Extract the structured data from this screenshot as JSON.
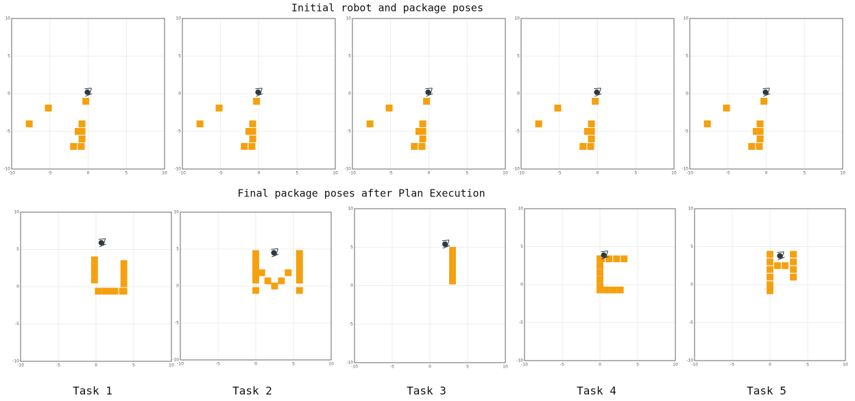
{
  "headings": {
    "top": "Initial robot and package poses",
    "bottom": "Final package poses after Plan Execution"
  },
  "chart_data": [
    {
      "type": "scatter",
      "xlim": [
        -10,
        10
      ],
      "ylim": [
        -10,
        10
      ],
      "xticks": [
        -10,
        -5,
        0,
        5,
        10
      ],
      "yticks": [
        -10,
        -5,
        0,
        5,
        10
      ],
      "grid": true,
      "packages": {
        "color": "#f5a00f",
        "x": [
          -7.7,
          -5.2,
          -0.3,
          -0.8,
          -1.3,
          -0.8,
          -0.8,
          -1.9,
          -0.9
        ],
        "y": [
          -4,
          -1.9,
          -1,
          -4,
          -5,
          -5,
          -6,
          -7,
          -7
        ]
      },
      "robot": {
        "color": "#2f3a40",
        "x": -0.1,
        "y": 0.2
      }
    },
    {
      "type": "scatter",
      "xlim": [
        -10,
        10
      ],
      "ylim": [
        -10,
        10
      ],
      "xticks": [
        -10,
        -5,
        0,
        5,
        10
      ],
      "yticks": [
        -10,
        -5,
        0,
        5,
        10
      ],
      "grid": true,
      "packages": {
        "color": "#f5a00f",
        "x": [
          -7.7,
          -5.2,
          -0.3,
          -0.8,
          -1.3,
          -0.8,
          -0.8,
          -1.9,
          -0.9
        ],
        "y": [
          -4,
          -1.9,
          -1,
          -4,
          -5,
          -5,
          -6,
          -7,
          -7
        ]
      },
      "robot": {
        "color": "#2f3a40",
        "x": -0.1,
        "y": 0.2
      }
    },
    {
      "type": "scatter",
      "xlim": [
        -10,
        10
      ],
      "ylim": [
        -10,
        10
      ],
      "xticks": [
        -10,
        -5,
        0,
        5,
        10
      ],
      "yticks": [
        -10,
        -5,
        0,
        5,
        10
      ],
      "grid": true,
      "packages": {
        "color": "#f5a00f",
        "x": [
          -7.7,
          -5.2,
          -0.3,
          -0.8,
          -1.3,
          -0.8,
          -0.8,
          -1.9,
          -0.9
        ],
        "y": [
          -4,
          -1.9,
          -1,
          -4,
          -5,
          -5,
          -6,
          -7,
          -7
        ]
      },
      "robot": {
        "color": "#2f3a40",
        "x": -0.1,
        "y": 0.2
      }
    },
    {
      "type": "scatter",
      "xlim": [
        -10,
        10
      ],
      "ylim": [
        -10,
        10
      ],
      "xticks": [
        -10,
        -5,
        0,
        5,
        10
      ],
      "yticks": [
        -10,
        -5,
        0,
        5,
        10
      ],
      "grid": true,
      "packages": {
        "color": "#f5a00f",
        "x": [
          -7.7,
          -5.2,
          -0.3,
          -0.8,
          -1.3,
          -0.8,
          -0.8,
          -1.9,
          -0.9
        ],
        "y": [
          -4,
          -1.9,
          -1,
          -4,
          -5,
          -5,
          -6,
          -7,
          -7
        ]
      },
      "robot": {
        "color": "#2f3a40",
        "x": -0.1,
        "y": 0.2
      }
    },
    {
      "type": "scatter",
      "xlim": [
        -10,
        10
      ],
      "ylim": [
        -10,
        10
      ],
      "xticks": [
        -10,
        -5,
        0,
        5,
        10
      ],
      "yticks": [
        -10,
        -5,
        0,
        5,
        10
      ],
      "grid": true,
      "packages": {
        "color": "#f5a00f",
        "x": [
          -7.7,
          -5.2,
          -0.3,
          -0.8,
          -1.3,
          -0.8,
          -0.8,
          -1.9,
          -0.9
        ],
        "y": [
          -4,
          -1.9,
          -1,
          -4,
          -5,
          -5,
          -6,
          -7,
          -7
        ]
      },
      "robot": {
        "color": "#2f3a40",
        "x": -0.1,
        "y": 0.2
      }
    },
    {
      "type": "scatter",
      "label": "Task 1",
      "xlim": [
        -10,
        10
      ],
      "ylim": [
        -10,
        10
      ],
      "xticks": [
        -10,
        -5,
        0,
        5,
        10
      ],
      "yticks": [
        -10,
        -5,
        0,
        5,
        10
      ],
      "grid": true,
      "packages": {
        "color": "#f5a00f",
        "x": [
          -0.2,
          -0.2,
          -0.2,
          -0.2,
          0.3,
          1.2,
          1.8,
          2.5,
          3.5,
          3.7,
          3.7,
          3.7,
          3.7,
          3.7
        ],
        "y": [
          3.6,
          2.7,
          1.8,
          0.9,
          -0.6,
          -0.6,
          -0.6,
          -0.6,
          -0.6,
          3.1,
          2.2,
          1.3,
          0.4,
          -0.6
        ]
      },
      "robot": {
        "color": "#2f3a40",
        "x": 0.7,
        "y": 5.9
      }
    },
    {
      "type": "scatter",
      "label": "Task 2",
      "xlim": [
        -10,
        10
      ],
      "ylim": [
        -10,
        10
      ],
      "xticks": [
        -10,
        -5,
        0,
        5,
        10
      ],
      "yticks": [
        -10,
        -5,
        0,
        5,
        10
      ],
      "grid": true,
      "packages": {
        "color": "#f5a00f",
        "x": [
          0,
          0,
          0,
          0,
          0,
          0,
          5.8,
          5.8,
          5.8,
          5.8,
          5.8,
          5.8,
          0.8,
          1.6,
          2.5,
          3.4,
          4.3
        ],
        "y": [
          4.4,
          3.5,
          2.6,
          1.7,
          0.8,
          -0.6,
          4.4,
          3.5,
          2.6,
          1.7,
          0.8,
          -0.6,
          1.8,
          0.7,
          0,
          0.7,
          1.8
        ]
      },
      "robot": {
        "color": "#2f3a40",
        "x": 2.4,
        "y": 4.5
      }
    },
    {
      "type": "scatter",
      "label": "Task 3",
      "xlim": [
        -10,
        10
      ],
      "ylim": [
        -10,
        10
      ],
      "xticks": [
        -10,
        -5,
        0,
        5,
        10
      ],
      "yticks": [
        -10,
        -5,
        0,
        5,
        10
      ],
      "grid": true,
      "packages": {
        "color": "#f5a00f",
        "x": [
          3,
          3,
          3,
          3,
          3,
          3
        ],
        "y": [
          4.6,
          3.8,
          3.0,
          2.2,
          1.4,
          0.6
        ]
      },
      "robot": {
        "color": "#2f3a40",
        "x": 2,
        "y": 5.4
      }
    },
    {
      "type": "scatter",
      "label": "Task 4",
      "xlim": [
        -10,
        10
      ],
      "ylim": [
        -10,
        10
      ],
      "xticks": [
        -10,
        -5,
        0,
        5,
        10
      ],
      "yticks": [
        -10,
        -5,
        0,
        5,
        10
      ],
      "grid": true,
      "packages": {
        "color": "#f5a00f",
        "x": [
          0.2,
          1.2,
          2.2,
          3.2,
          0,
          0,
          0,
          0,
          0,
          0,
          0.9,
          1.8,
          2.7
        ],
        "y": [
          3.4,
          3.4,
          3.4,
          3.4,
          3.4,
          2.5,
          1.6,
          0.7,
          -0.2,
          -0.7,
          -0.7,
          -0.7,
          -0.7
        ]
      },
      "robot": {
        "color": "#2f3a40",
        "x": 0.5,
        "y": 3.9
      }
    },
    {
      "type": "scatter",
      "label": "Task 5",
      "xlim": [
        -10,
        10
      ],
      "ylim": [
        -10,
        10
      ],
      "xticks": [
        -10,
        -5,
        0,
        5,
        10
      ],
      "yticks": [
        -10,
        -5,
        0,
        5,
        10
      ],
      "grid": true,
      "packages": {
        "color": "#f5a00f",
        "x": [
          0,
          0,
          0,
          0,
          0,
          0,
          3.1,
          3.1,
          3.1,
          3.1,
          1.0,
          2.0
        ],
        "y": [
          4.0,
          3.0,
          2.0,
          1.0,
          0,
          -0.8,
          4.0,
          3.0,
          2.0,
          1.0,
          2.5,
          2.5
        ]
      },
      "robot": {
        "color": "#2f3a40",
        "x": 1.3,
        "y": 3.8
      }
    }
  ]
}
